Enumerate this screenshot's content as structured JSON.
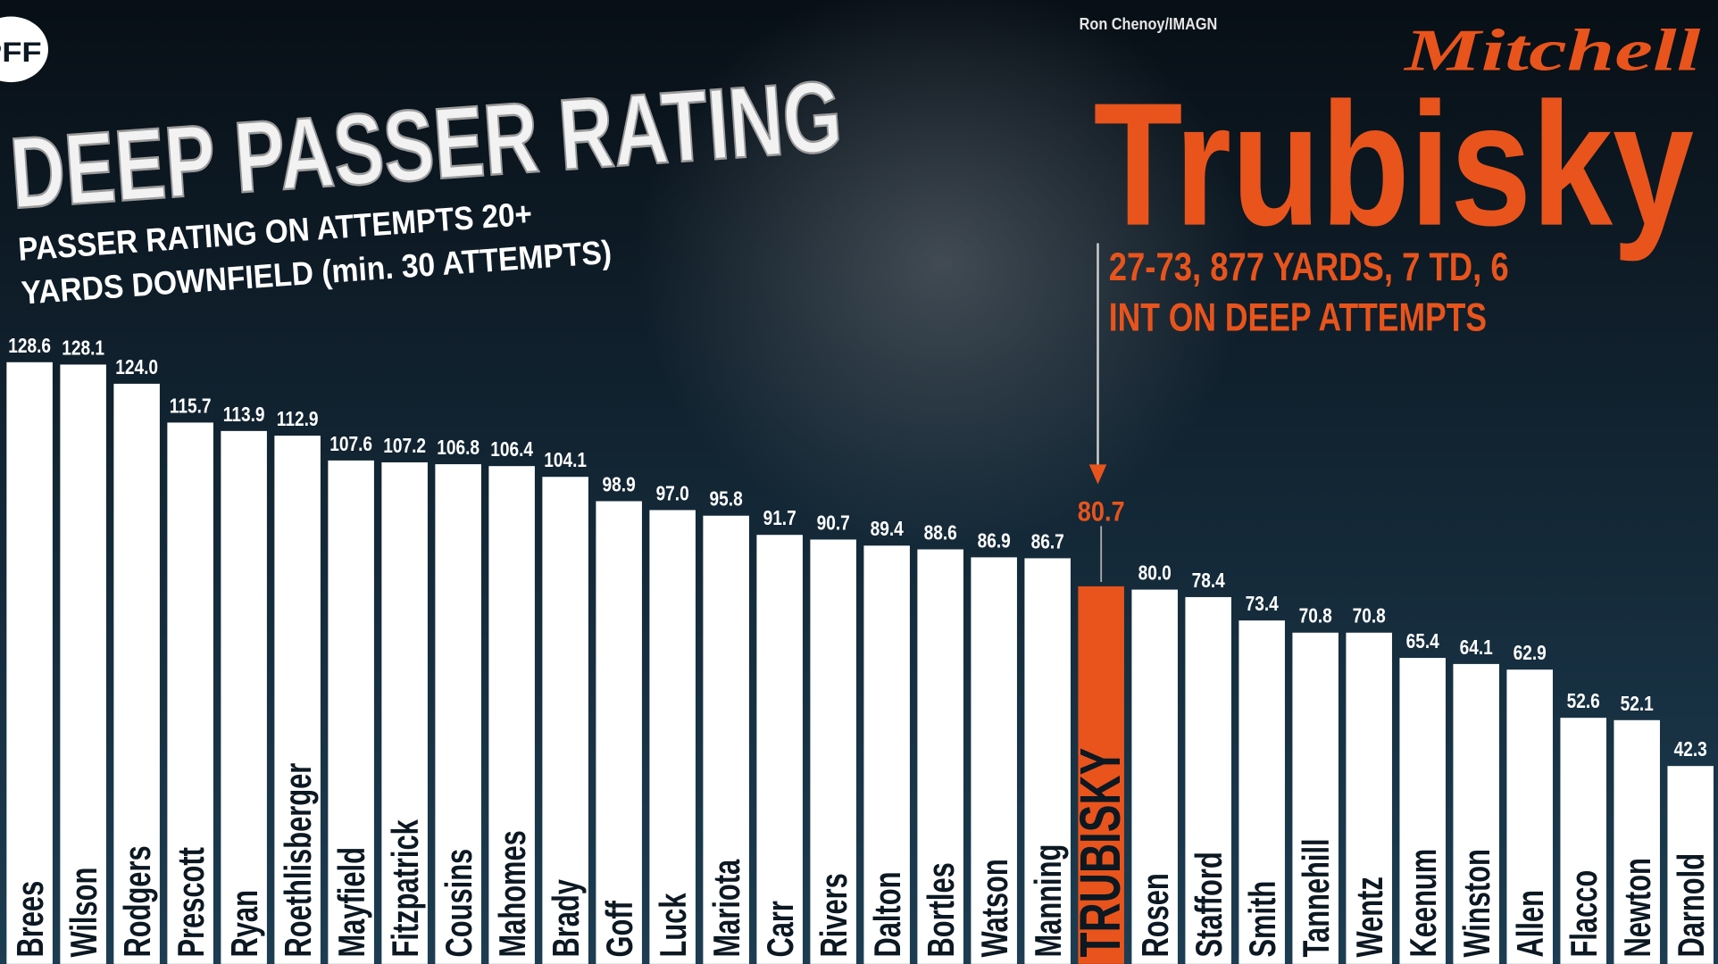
{
  "chart_data": {
    "type": "bar",
    "logo": "PFF",
    "title": "DEEP PASSER RATING",
    "subtitle": [
      "PASSER RATING ON ATTEMPTS 20+",
      "YARDS DOWNFIELD (min. 30 ATTEMPTS)"
    ],
    "credit": "Ron Chenoy/IMAGN",
    "player_first": "Mitchell",
    "player_last": "Trubisky",
    "annotation": [
      "27-73, 877 YARDS, 7 TD, 6",
      "INT ON DEEP ATTEMPTS"
    ],
    "categories": [
      "Brees",
      "Wilson",
      "Rodgers",
      "Prescott",
      "Ryan",
      "Roethlisberger",
      "Mayfield",
      "Fitzpatrick",
      "Cousins",
      "Mahomes",
      "Brady",
      "Goff",
      "Luck",
      "Mariota",
      "Carr",
      "Rivers",
      "Dalton",
      "Bortles",
      "Watson",
      "Manning",
      "TRUBISKY",
      "Rosen",
      "Stafford",
      "Smith",
      "Tannehill",
      "Wentz",
      "Keenum",
      "Winston",
      "Allen",
      "Flacco",
      "Newton",
      "Darnold"
    ],
    "values": [
      128.6,
      128.1,
      124.0,
      115.7,
      113.9,
      112.9,
      107.6,
      107.2,
      106.8,
      106.4,
      104.1,
      98.9,
      97.0,
      95.8,
      91.7,
      90.7,
      89.4,
      88.6,
      86.9,
      86.7,
      80.7,
      80.0,
      78.4,
      73.4,
      70.8,
      70.8,
      65.4,
      64.1,
      62.9,
      52.6,
      52.1,
      42.3
    ],
    "value_labels": [
      "128.6",
      "128.1",
      "124.0",
      "115.7",
      "113.9",
      "112.9",
      "107.6",
      "107.2",
      "106.8",
      "106.4",
      "104.1",
      "98.9",
      "97.0",
      "95.8",
      "91.7",
      "90.7",
      "89.4",
      "88.6",
      "86.9",
      "86.7",
      "80.7",
      "80.0",
      "78.4",
      "73.4",
      "70.8",
      "70.8",
      "65.4",
      "64.1",
      "62.9",
      "52.6",
      "52.1",
      "42.3"
    ],
    "colors": [
      "#ffffff",
      "#ffffff",
      "#ffffff",
      "#ffffff",
      "#ffffff",
      "#ffffff",
      "#ffffff",
      "#ffffff",
      "#ffffff",
      "#ffffff",
      "#ffffff",
      "#ffffff",
      "#ffffff",
      "#ffffff",
      "#ffffff",
      "#ffffff",
      "#ffffff",
      "#ffffff",
      "#ffffff",
      "#ffffff",
      "#e8541c",
      "#ffffff",
      "#ffffff",
      "#ffffff",
      "#ffffff",
      "#ffffff",
      "#ffffff",
      "#ffffff",
      "#ffffff",
      "#ffffff",
      "#ffffff",
      "#ffffff"
    ],
    "ylim": [
      0,
      206
    ]
  }
}
